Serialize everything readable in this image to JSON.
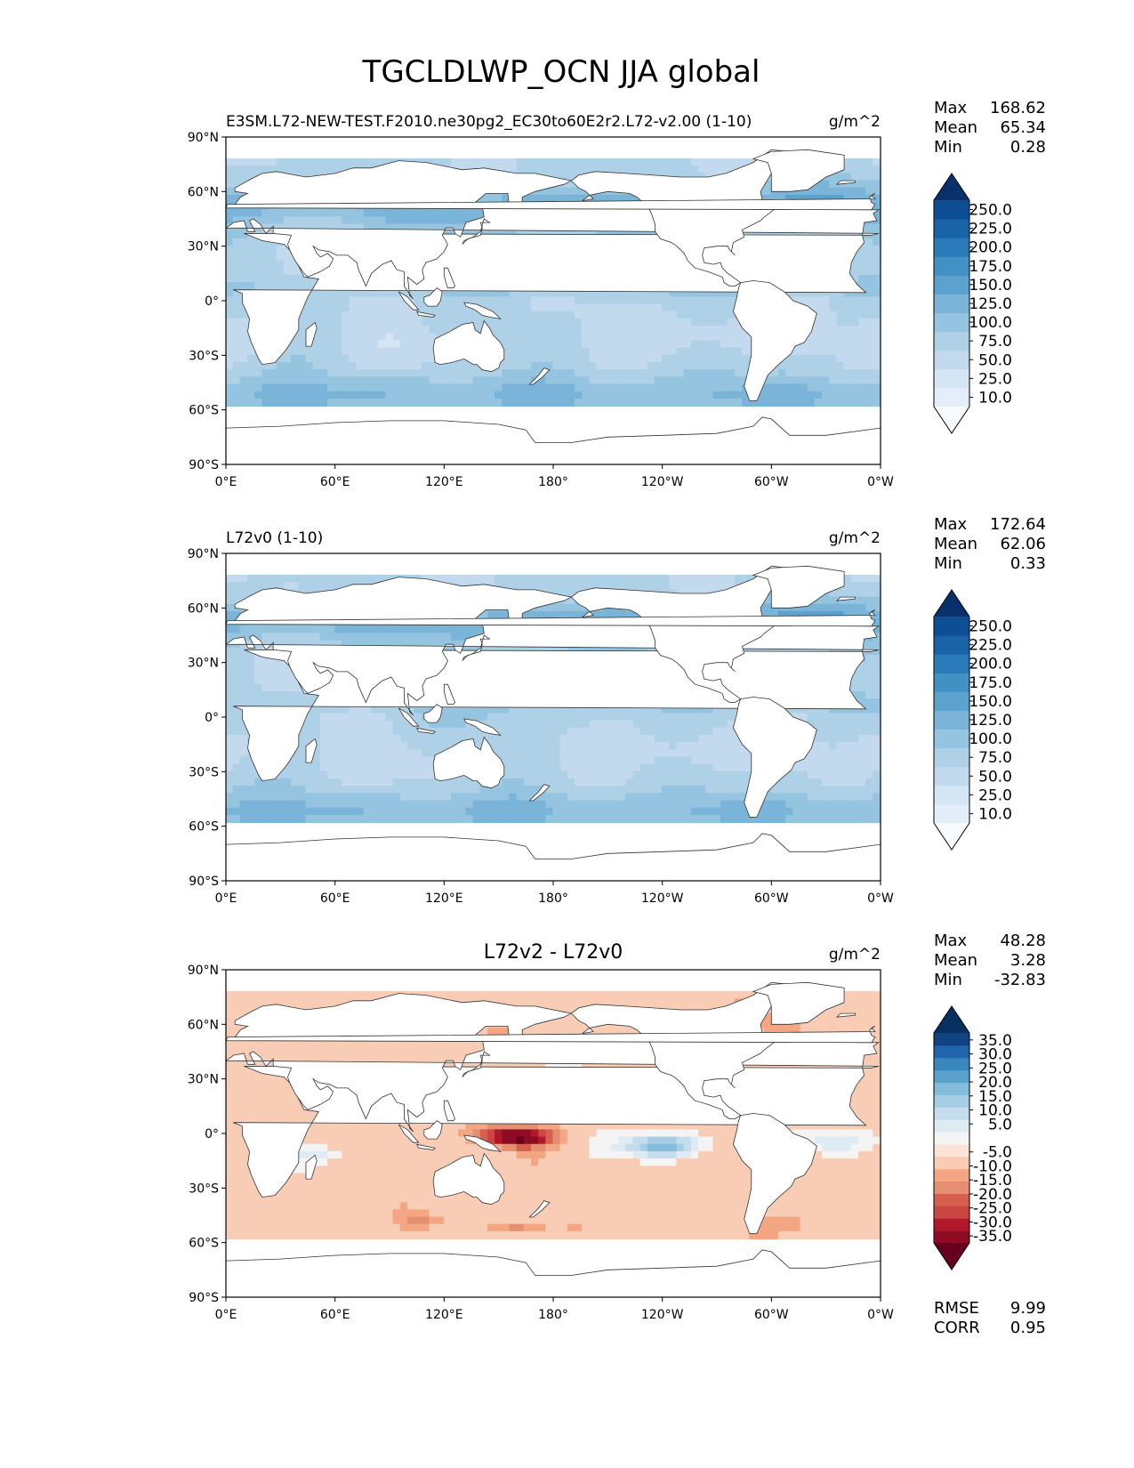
{
  "figure_title": "TGCLDLWP_OCN JJA global",
  "colors": {
    "land": "#ffffff",
    "coast": "#333333",
    "seq_cmap": [
      "#f7fbff",
      "#e3eef8",
      "#d4e5f4",
      "#c3daee",
      "#aed1e7",
      "#94c4df",
      "#7ab5d9",
      "#5ba2cf",
      "#4191c5",
      "#2b7bba",
      "#1b63a7",
      "#0d4e94",
      "#08306b"
    ],
    "div_cmap": [
      "#67001f",
      "#8d0c24",
      "#b2182b",
      "#c94740",
      "#d6604d",
      "#e58f72",
      "#f4a582",
      "#f9cdb5",
      "#fbe3d6",
      "#f4f4f4",
      "#deebf2",
      "#c5dcec",
      "#a5cde3",
      "#84bcdb",
      "#5aa1cc",
      "#3a87be",
      "#2166ac",
      "#114282",
      "#053061"
    ]
  },
  "chart_data": [
    {
      "type": "heatmap",
      "panel": "test",
      "title_left": "E3SM.L72-NEW-TEST.F2010.ne30pg2_EC30to60E2r2.L72-v2.00 (1-10)",
      "title_center": "",
      "units": "g/m^2",
      "xlim": [
        0,
        360
      ],
      "ylim": [
        -90,
        90
      ],
      "xticks": [
        "0°E",
        "60°E",
        "120°E",
        "180°",
        "120°W",
        "60°W",
        "0°W"
      ],
      "yticks": [
        "90°N",
        "60°N",
        "30°N",
        "0°",
        "30°S",
        "60°S",
        "90°S"
      ],
      "stats": {
        "Max": "168.62",
        "Mean": "65.34",
        "Min": "0.28"
      },
      "colorbar": {
        "labels": [
          "250.0",
          "225.0",
          "200.0",
          "175.0",
          "150.0",
          "125.0",
          "100.0",
          "75.0",
          "50.0",
          "25.0",
          "10.0"
        ],
        "extend": "both",
        "cmap": "sequential-blue"
      },
      "field": "sequential",
      "variant": 1
    },
    {
      "type": "heatmap",
      "panel": "reference",
      "title_left": "L72v0 (1-10)",
      "title_center": "",
      "units": "g/m^2",
      "xlim": [
        0,
        360
      ],
      "ylim": [
        -90,
        90
      ],
      "xticks": [
        "0°E",
        "60°E",
        "120°E",
        "180°",
        "120°W",
        "60°W",
        "0°W"
      ],
      "yticks": [
        "90°N",
        "60°N",
        "30°N",
        "0°",
        "30°S",
        "60°S",
        "90°S"
      ],
      "stats": {
        "Max": "172.64",
        "Mean": "62.06",
        "Min": "0.33"
      },
      "colorbar": {
        "labels": [
          "250.0",
          "225.0",
          "200.0",
          "175.0",
          "150.0",
          "125.0",
          "100.0",
          "75.0",
          "50.0",
          "25.0",
          "10.0"
        ],
        "extend": "both",
        "cmap": "sequential-blue"
      },
      "field": "sequential",
      "variant": 2
    },
    {
      "type": "heatmap",
      "panel": "difference",
      "title_left": "",
      "title_center": "L72v2 - L72v0",
      "units": "g/m^2",
      "xlim": [
        0,
        360
      ],
      "ylim": [
        -90,
        90
      ],
      "xticks": [
        "0°E",
        "60°E",
        "120°E",
        "180°",
        "120°W",
        "60°W",
        "0°W"
      ],
      "yticks": [
        "90°N",
        "60°N",
        "30°N",
        "0°",
        "30°S",
        "60°S",
        "90°S"
      ],
      "stats": {
        "Max": "48.28",
        "Mean": "3.28",
        "Min": "-32.83"
      },
      "colorbar": {
        "labels": [
          "35.0",
          "30.0",
          "25.0",
          "20.0",
          "15.0",
          "10.0",
          "5.0",
          "-5.0",
          "-10.0",
          "-15.0",
          "-20.0",
          "-25.0",
          "-30.0",
          "-35.0"
        ],
        "extend": "both",
        "cmap": "diverging-red-blue"
      },
      "rmse_corr": {
        "RMSE": "9.99",
        "CORR": "0.95"
      },
      "field": "diverging"
    }
  ]
}
